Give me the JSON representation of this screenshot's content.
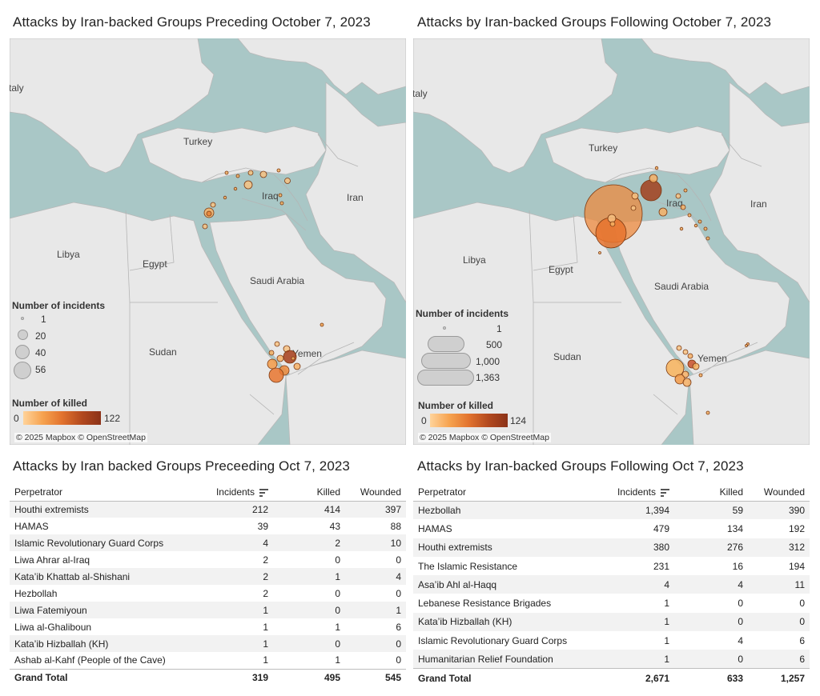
{
  "maps": {
    "left": {
      "title": "Attacks by Iran-backed Groups Preceding October 7, 2023",
      "places": [
        "taly",
        "Turkey",
        "Iraq",
        "Iran",
        "Libya",
        "Egypt",
        "Saudi Arabia",
        "Sudan",
        "Yemen"
      ],
      "incidents_legend": {
        "title": "Number of incidents",
        "values": [
          "1",
          "20",
          "40",
          "56"
        ]
      },
      "killed_legend": {
        "title": "Number of killed",
        "min": "0",
        "max": "122"
      },
      "attribution": "© 2025 Mapbox © OpenStreetMap"
    },
    "right": {
      "title": "Attacks by Iran-backed Groups Following October 7, 2023",
      "places": [
        "taly",
        "Turkey",
        "Iraq",
        "Iran",
        "Libya",
        "Egypt",
        "Saudi Arabia",
        "Sudan",
        "Yemen"
      ],
      "incidents_legend": {
        "title": "Number of incidents",
        "values": [
          "1",
          "500",
          "1,000",
          "1,363"
        ]
      },
      "killed_legend": {
        "title": "Number of killed",
        "min": "0",
        "max": "124"
      },
      "attribution": "© 2025 Mapbox © OpenStreetMap"
    }
  },
  "tables": {
    "left": {
      "title": "Attacks by Iran backed Groups Preceeding Oct 7, 2023",
      "columns": [
        "Perpetrator",
        "Incidents",
        "Killed",
        "Wounded"
      ],
      "rows": [
        [
          "Houthi extremists",
          "212",
          "414",
          "397"
        ],
        [
          "HAMAS",
          "39",
          "43",
          "88"
        ],
        [
          "Islamic Revolutionary Guard Corps",
          "4",
          "2",
          "10"
        ],
        [
          "Liwa Ahrar al-Iraq",
          "2",
          "0",
          "0"
        ],
        [
          "Kata’ib Khattab al-Shishani",
          "2",
          "1",
          "4"
        ],
        [
          "Hezbollah",
          "2",
          "0",
          "0"
        ],
        [
          "Liwa Fatemiyoun",
          "1",
          "0",
          "1"
        ],
        [
          "Liwa al-Ghaliboun",
          "1",
          "1",
          "6"
        ],
        [
          "Kata’ib Hizballah (KH)",
          "1",
          "0",
          "0"
        ],
        [
          "Ashab al-Kahf (People of the Cave)",
          "1",
          "1",
          "0"
        ]
      ],
      "total": [
        "Grand Total",
        "319",
        "495",
        "545"
      ]
    },
    "right": {
      "title": "Attacks by Iran-backed Groups Following Oct 7, 2023",
      "columns": [
        "Perpetrator",
        "Incidents",
        "Killed",
        "Wounded"
      ],
      "rows": [
        [
          "Hezbollah",
          "1,394",
          "59",
          "390"
        ],
        [
          "HAMAS",
          "479",
          "134",
          "192"
        ],
        [
          "Houthi extremists",
          "380",
          "276",
          "312"
        ],
        [
          "The Islamic Resistance",
          "231",
          "16",
          "194"
        ],
        [
          "Asa’ib Ahl al-Haqq",
          "4",
          "4",
          "11"
        ],
        [
          "Lebanese Resistance Brigades",
          "1",
          "0",
          "0"
        ],
        [
          "Kata’ib Hizballah (KH)",
          "1",
          "0",
          "0"
        ],
        [
          "Islamic Revolutionary Guard Corps",
          "1",
          "4",
          "6"
        ],
        [
          "Humanitarian Relief Foundation",
          "1",
          "0",
          "6"
        ]
      ],
      "total": [
        "Grand Total",
        "2,671",
        "633",
        "1,257"
      ]
    }
  }
}
